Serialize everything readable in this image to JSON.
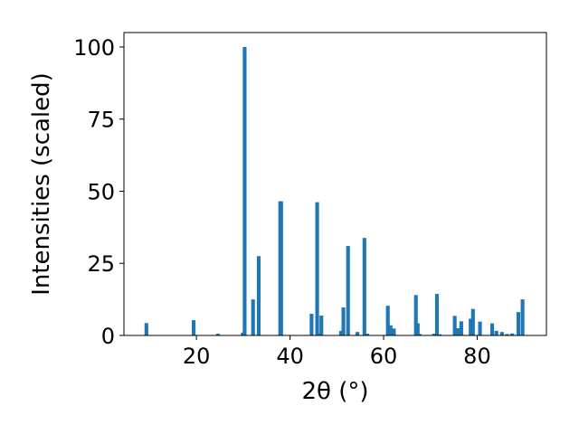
{
  "chart_data": {
    "type": "bar",
    "xlabel": "2θ (°)",
    "ylabel": "Intensities (scaled)",
    "xlim": [
      4.5,
      94.8
    ],
    "ylim": [
      0,
      105
    ],
    "xticks": [
      20,
      40,
      60,
      80
    ],
    "yticks": [
      0,
      25,
      50,
      75,
      100
    ],
    "grid": false,
    "bar_color": "#1f77b4",
    "bar_width": 0.8,
    "x": [
      9.3,
      19.4,
      24.6,
      29.9,
      30.3,
      32.1,
      33.3,
      37.9,
      38.1,
      44.6,
      45.8,
      46.0,
      46.7,
      50.9,
      51.4,
      52.4,
      54.4,
      55.9,
      56.5,
      60.9,
      61.5,
      62.2,
      66.9,
      67.3,
      67.7,
      70.8,
      71.4,
      72.0,
      75.2,
      75.9,
      76.6,
      78.6,
      79.1,
      80.6,
      83.2,
      84.1,
      85.3,
      86.4,
      87.5,
      88.8,
      89.7
    ],
    "values": [
      4.3,
      5.3,
      0.6,
      1.0,
      100.0,
      12.5,
      27.5,
      46.5,
      46.5,
      7.5,
      46.2,
      0.7,
      6.9,
      1.6,
      9.7,
      31.0,
      1.2,
      33.8,
      0.6,
      10.3,
      3.5,
      2.4,
      14.0,
      4.2,
      0.5,
      0.6,
      14.4,
      0.4,
      6.8,
      2.5,
      4.9,
      5.8,
      9.2,
      4.8,
      4.2,
      1.6,
      1.2,
      0.5,
      0.7,
      8.1,
      12.5
    ]
  }
}
